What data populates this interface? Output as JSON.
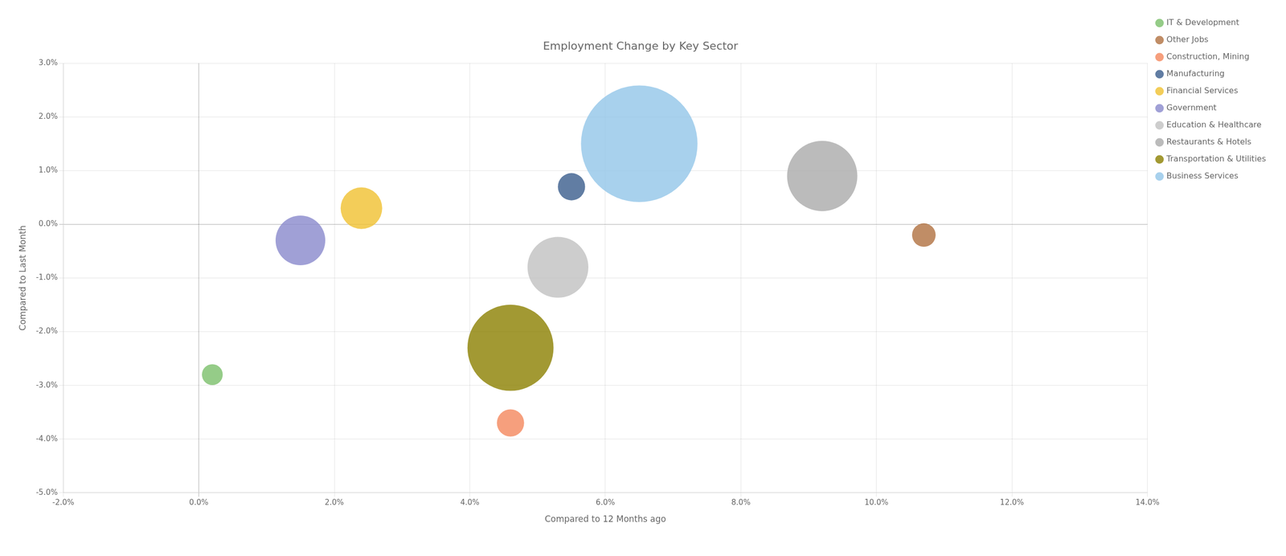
{
  "chart_data": {
    "type": "bubble",
    "title": "Employment Change by Key Sector",
    "xlabel": "Compared to 12 Months ago",
    "ylabel": "Compared to Last Month",
    "xlim": [
      -0.02,
      0.14
    ],
    "ylim": [
      -0.05,
      0.03
    ],
    "xticks": [
      {
        "value": -0.02,
        "label": "-2.0%"
      },
      {
        "value": 0.0,
        "label": "0.0%"
      },
      {
        "value": 0.02,
        "label": "2.0%"
      },
      {
        "value": 0.04,
        "label": "4.0%"
      },
      {
        "value": 0.06,
        "label": "6.0%"
      },
      {
        "value": 0.08,
        "label": "8.0%"
      },
      {
        "value": 0.1,
        "label": "10.0%"
      },
      {
        "value": 0.12,
        "label": "12.0%"
      },
      {
        "value": 0.14,
        "label": "14.0%"
      }
    ],
    "yticks": [
      {
        "value": -0.05,
        "label": "-5.0%"
      },
      {
        "value": -0.04,
        "label": "-4.0%"
      },
      {
        "value": -0.03,
        "label": "-3.0%"
      },
      {
        "value": -0.02,
        "label": "-2.0%"
      },
      {
        "value": -0.01,
        "label": "-1.0%"
      },
      {
        "value": 0.0,
        "label": "0.0%"
      },
      {
        "value": 0.01,
        "label": "1.0%"
      },
      {
        "value": 0.02,
        "label": "2.0%"
      },
      {
        "value": 0.03,
        "label": "3.0%"
      }
    ],
    "grid": true,
    "legend": "right",
    "series": [
      {
        "name": "Business Services",
        "color": "#92c5e8",
        "x": [
          0.065
        ],
        "values": [
          0.015
        ],
        "size": [
          22000
        ]
      },
      {
        "name": "Construction, Mining",
        "color": "#f4875d",
        "x": [
          0.046
        ],
        "values": [
          -0.037
        ],
        "size": [
          1200
        ]
      },
      {
        "name": "Education & Healthcare",
        "color": "#c0c0c0",
        "x": [
          0.053
        ],
        "values": [
          -0.008
        ],
        "size": [
          6000
        ]
      },
      {
        "name": "Financial Services",
        "color": "#f0c030",
        "x": [
          0.024
        ],
        "values": [
          0.003
        ],
        "size": [
          2800
        ]
      },
      {
        "name": "Government",
        "color": "#8888cc",
        "x": [
          0.015
        ],
        "values": [
          -0.003
        ],
        "size": [
          4000
        ]
      },
      {
        "name": "IT & Development",
        "color": "#7bbf6a",
        "x": [
          0.002
        ],
        "values": [
          -0.028
        ],
        "size": [
          700
        ]
      },
      {
        "name": "Manufacturing",
        "color": "#3a5c8c",
        "x": [
          0.055
        ],
        "values": [
          0.007
        ],
        "size": [
          1200
        ]
      },
      {
        "name": "Other Jobs",
        "color": "#b07040",
        "x": [
          0.107
        ],
        "values": [
          -0.002
        ],
        "size": [
          900
        ]
      },
      {
        "name": "Restaurants & Hotels",
        "color": "#aaaaaa",
        "x": [
          0.092
        ],
        "values": [
          0.009
        ],
        "size": [
          8000
        ]
      },
      {
        "name": "Transportation & Utilities",
        "color": "#8B8000",
        "x": [
          0.046
        ],
        "values": [
          -0.023
        ],
        "size": [
          12000
        ]
      }
    ]
  }
}
